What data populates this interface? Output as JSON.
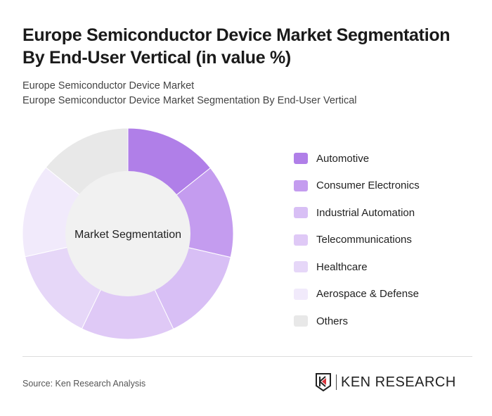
{
  "title": "Europe Semiconductor Device Market Segmentation By End-User Vertical (in value %)",
  "subtitle1": "Europe Semiconductor Device Market",
  "subtitle2": "Europe Semiconductor Device Market Segmentation By End-User Vertical",
  "source": "Source: Ken Research Analysis",
  "logo_text": "KEN RESEARCH",
  "chart_data": {
    "type": "pie",
    "donut": true,
    "center_label": "Market Segmentation",
    "categories": [
      "Automotive",
      "Consumer Electronics",
      "Industrial Automation",
      "Telecommunications",
      "Healthcare",
      "Aerospace & Defense",
      "Others"
    ],
    "values": [
      14.3,
      14.3,
      14.3,
      14.3,
      14.3,
      14.3,
      14.2
    ],
    "colors": [
      "#b07fe8",
      "#c49cef",
      "#d8bff5",
      "#dfc9f6",
      "#e6d7f8",
      "#f1eafb",
      "#e8e8e8"
    ],
    "legend": "right"
  }
}
